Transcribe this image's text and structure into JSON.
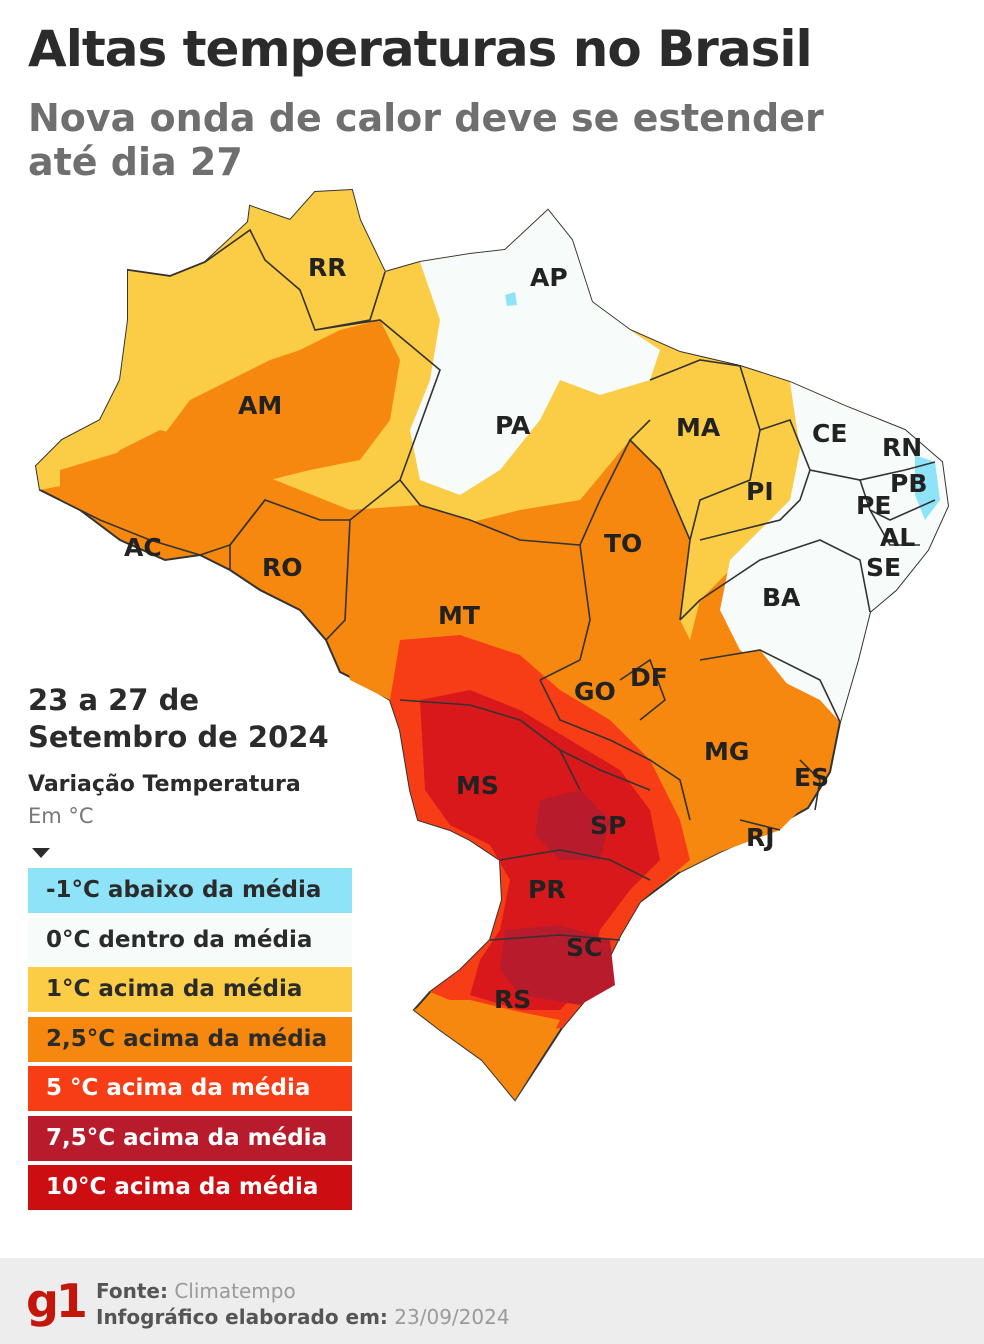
{
  "title": "Altas temperaturas no Brasil",
  "subtitle": "Nova onda de calor deve se estender até dia 27",
  "period": {
    "line1": "23 a 27 de",
    "line2": "Setembro de 2024"
  },
  "variation": {
    "title": "Variação Temperatura",
    "unit": "Em °C"
  },
  "legend": [
    {
      "label": "-1°C abaixo da média",
      "color": "#8fe3f8",
      "text_color": "#2b2b2b"
    },
    {
      "label": "0°C dentro da média",
      "color": "#f7fbf9",
      "text_color": "#2b2b2b"
    },
    {
      "label": "1°C acima da média",
      "color": "#fbcc45",
      "text_color": "#2b2b2b"
    },
    {
      "label": "2,5°C acima da média",
      "color": "#f7880f",
      "text_color": "#2b2b2b"
    },
    {
      "label": "5 °C acima da média",
      "color": "#f73d16",
      "text_color": "#ffffff"
    },
    {
      "label": "7,5°C acima da média",
      "color": "#b81c2c",
      "text_color": "#ffffff"
    },
    {
      "label": "10°C acima da média",
      "color": "#cc0d12",
      "text_color": "#ffffff"
    }
  ],
  "states": {
    "RR": "RR",
    "AP": "AP",
    "AM": "AM",
    "PA": "PA",
    "MA": "MA",
    "CE": "CE",
    "RN": "RN",
    "PB": "PB",
    "PE": "PE",
    "AL": "AL",
    "SE": "SE",
    "PI": "PI",
    "AC": "AC",
    "RO": "RO",
    "TO": "TO",
    "BA": "BA",
    "MT": "MT",
    "DF": "DF",
    "GO": "GO",
    "MG": "MG",
    "ES": "ES",
    "MS": "MS",
    "SP": "SP",
    "RJ": "RJ",
    "PR": "PR",
    "SC": "SC",
    "RS": "RS"
  },
  "footer": {
    "logo": "g1",
    "source_label": "Fonte:",
    "source_value": "Climatempo",
    "date_label": "Infográfico elaborado em:",
    "date_value": "23/09/2024"
  }
}
